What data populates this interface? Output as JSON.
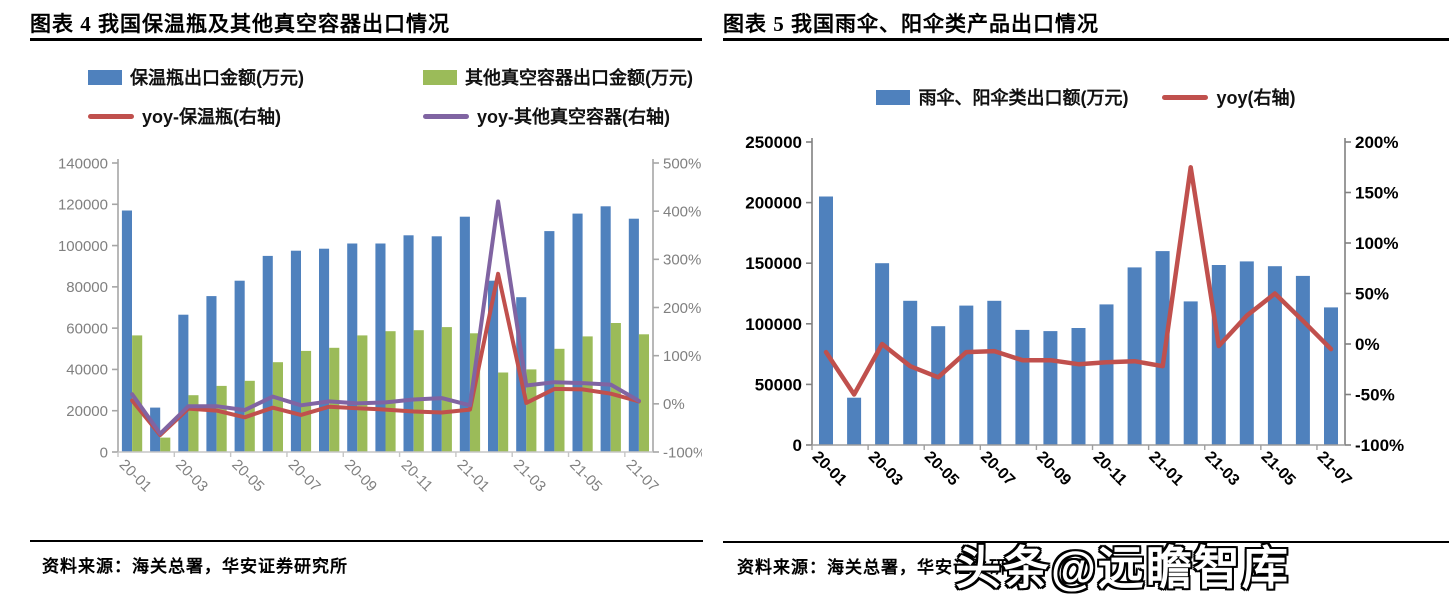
{
  "watermark": "头条@远瞻智库",
  "panels": [
    {
      "title": "图表 4  我国保温瓶及其他真空容器出口情况",
      "source": "资料来源：海关总署，华安证券研究所"
    },
    {
      "title": "图表 5  我国雨伞、阳伞类产品出口情况",
      "source": "资料来源：海关总署，华安证券研究所"
    }
  ],
  "chart_data": [
    {
      "type": "bar+line",
      "title": "我国保温瓶及其他真空容器出口情况",
      "categories": [
        "20-01",
        "20-02",
        "20-03",
        "20-04",
        "20-05",
        "20-06",
        "20-07",
        "20-08",
        "20-09",
        "20-10",
        "20-11",
        "20-12",
        "21-01",
        "21-02",
        "21-03",
        "21-04",
        "21-05",
        "21-06",
        "21-07"
      ],
      "x_label_every": 2,
      "left_axis": {
        "min": 0,
        "max": 140000,
        "step": 20000,
        "suffix": ""
      },
      "right_axis": {
        "min": -100,
        "max": 500,
        "step": 100,
        "suffix": "%"
      },
      "bar_series": [
        {
          "name": "保温瓶出口金额(万元)",
          "color": "#4F81BD",
          "values": [
            117000,
            21500,
            66500,
            75500,
            83000,
            95000,
            97500,
            98500,
            101000,
            101000,
            105000,
            104500,
            114000,
            83000,
            75000,
            107000,
            115500,
            119000,
            113000
          ]
        },
        {
          "name": "其他真空容器出口金额(万元)",
          "color": "#9BBB59",
          "values": [
            56500,
            7000,
            27500,
            32000,
            34500,
            43500,
            49000,
            50500,
            56500,
            58500,
            59000,
            60500,
            57500,
            38500,
            40000,
            50000,
            56000,
            62500,
            57000
          ]
        }
      ],
      "line_series": [
        {
          "name": "yoy-保温瓶(右轴)",
          "color": "#C0504D",
          "axis": "right",
          "values": [
            7,
            -65,
            -10,
            -14,
            -28,
            -8,
            -23,
            -6,
            -9,
            -12,
            -16,
            -18,
            -12,
            270,
            2,
            31,
            30,
            21,
            5
          ]
        },
        {
          "name": "yoy-其他真空容器(右轴)",
          "color": "#8064A2",
          "axis": "right",
          "values": [
            20,
            -62,
            -5,
            -5,
            -13,
            15,
            -3,
            5,
            1,
            3,
            9,
            12,
            -3,
            420,
            38,
            45,
            43,
            40,
            6
          ]
        }
      ],
      "legend_layout": "grid"
    },
    {
      "type": "bar+line",
      "title": "我国雨伞、阳伞类产品出口情况",
      "categories": [
        "20-01",
        "20-02",
        "20-03",
        "20-04",
        "20-05",
        "20-06",
        "20-07",
        "20-08",
        "20-09",
        "20-10",
        "20-11",
        "20-12",
        "21-01",
        "21-02",
        "21-03",
        "21-04",
        "21-05",
        "21-06",
        "21-07"
      ],
      "x_label_every": 2,
      "left_axis": {
        "min": 0,
        "max": 250000,
        "step": 50000,
        "suffix": ""
      },
      "right_axis": {
        "min": -100,
        "max": 200,
        "step": 50,
        "suffix": "%"
      },
      "bar_series": [
        {
          "name": "雨伞、阳伞类出口额(万元)",
          "color": "#4F81BD",
          "values": [
            205000,
            39000,
            150000,
            119000,
            98000,
            115000,
            119000,
            95000,
            94000,
            96500,
            116000,
            146500,
            160000,
            118500,
            148500,
            151500,
            147500,
            139500,
            113500
          ]
        }
      ],
      "line_series": [
        {
          "name": "yoy(右轴)",
          "color": "#C0504D",
          "axis": "right",
          "values": [
            -8,
            -50,
            0,
            -22,
            -33,
            -8,
            -7,
            -16,
            -16,
            -20,
            -18,
            -17,
            -22,
            175,
            -2,
            28,
            50,
            23,
            -5
          ]
        }
      ],
      "legend_layout": "row"
    }
  ]
}
